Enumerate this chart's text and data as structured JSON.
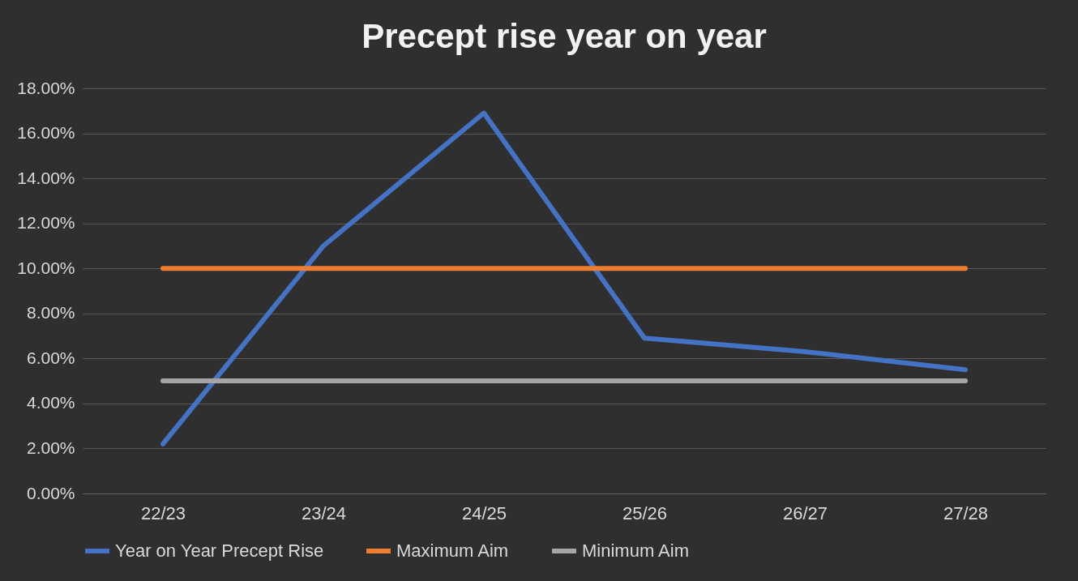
{
  "chart_data": {
    "type": "line",
    "title": "Precept rise year on year",
    "categories": [
      "22/23",
      "23/24",
      "24/25",
      "25/26",
      "26/27",
      "27/28"
    ],
    "series": [
      {
        "name": "Year on Year Precept Rise",
        "color": "#4472c4",
        "values": [
          2.2,
          11.0,
          16.9,
          6.9,
          6.3,
          5.5
        ]
      },
      {
        "name": "Maximum Aim",
        "color": "#ed7d31",
        "values": [
          10,
          10,
          10,
          10,
          10,
          10
        ]
      },
      {
        "name": "Minimum Aim",
        "color": "#a5a5a5",
        "values": [
          5,
          5,
          5,
          5,
          5,
          5
        ]
      }
    ],
    "ylim": [
      0,
      18
    ],
    "yticks": [
      {
        "value": 0,
        "label": "0.00%"
      },
      {
        "value": 2,
        "label": "2.00%"
      },
      {
        "value": 4,
        "label": "4.00%"
      },
      {
        "value": 6,
        "label": "6.00%"
      },
      {
        "value": 8,
        "label": "8.00%"
      },
      {
        "value": 10,
        "label": "10.00%"
      },
      {
        "value": 12,
        "label": "12.00%"
      },
      {
        "value": 14,
        "label": "14.00%"
      },
      {
        "value": 16,
        "label": "16.00%"
      },
      {
        "value": 18,
        "label": "18.00%"
      }
    ],
    "grid": "y",
    "legend": "bottom",
    "marker": "none",
    "line_style": "solid"
  }
}
